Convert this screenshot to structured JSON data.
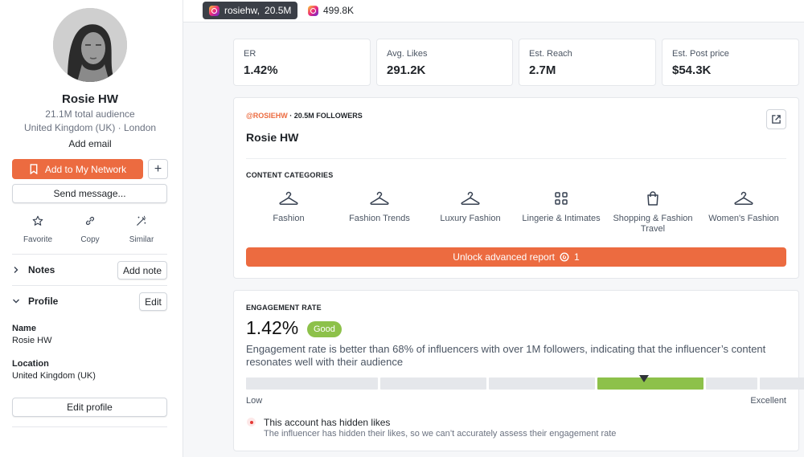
{
  "profile": {
    "name": "Rosie HW",
    "audience": "21.1M total audience",
    "location": "United Kingdom (UK) · London",
    "add_email": "Add email",
    "add_network_label": "Add to My Network",
    "plus_label": "+",
    "send_message_label": "Send message...",
    "actions": [
      {
        "label": "Favorite",
        "icon": "star-icon"
      },
      {
        "label": "Copy",
        "icon": "link-icon"
      },
      {
        "label": "Similar",
        "icon": "magic-wand-icon"
      }
    ],
    "notes_label": "Notes",
    "add_note_label": "Add note",
    "profile_label": "Profile",
    "edit_label": "Edit",
    "name_label": "Name",
    "name_value": "Rosie HW",
    "location_label": "Location",
    "location_value": "United Kingdom (UK)",
    "edit_profile_label": "Edit profile"
  },
  "tabs": [
    {
      "label": "rosiehw,",
      "count": "20.5M",
      "icon": "instagram-icon",
      "active": true
    },
    {
      "label": "499.8K",
      "icon": "instagram-icon",
      "active": false
    }
  ],
  "kpis": [
    {
      "label": "ER",
      "value": "1.42%"
    },
    {
      "label": "Avg. Likes",
      "value": "291.2K"
    },
    {
      "label": "Est. Reach",
      "value": "2.7M"
    },
    {
      "label": "Est. Post price",
      "value": "$54.3K"
    }
  ],
  "overview": {
    "handle": "@ROSIEHW",
    "followers": "· 20.5M FOLLOWERS",
    "name": "Rosie HW",
    "categories_title": "CONTENT CATEGORIES",
    "categories": [
      {
        "label": "Fashion",
        "icon": "hanger-icon"
      },
      {
        "label": "Fashion Trends",
        "icon": "hanger-icon"
      },
      {
        "label": "Luxury Fashion",
        "icon": "hanger-icon"
      },
      {
        "label": "Lingerie & Intimates",
        "icon": "grid-icon"
      },
      {
        "label": "Shopping & Fashion Travel",
        "icon": "shopping-bag-icon"
      },
      {
        "label": "Women's Fashion",
        "icon": "hanger-icon"
      }
    ],
    "unlock_label": "Unlock advanced report",
    "unlock_cost": "1"
  },
  "engagement": {
    "title": "ENGAGEMENT RATE",
    "value": "1.42%",
    "badge": "Good",
    "description": "Engagement rate is better than 68% of influencers with over 1M followers, indicating that the influencer’s content resonates well with their audience",
    "scale_low": "Low",
    "scale_high": "Excellent",
    "active_segment": 4,
    "segment_count": 6,
    "hidden_title": "This account has hidden likes",
    "hidden_desc": "The influencer has hidden their likes, so we can’t accurately assess their engagement rate"
  },
  "colors": {
    "accent": "#ec6b40",
    "good": "#8dc14a",
    "tab_dark": "#3b3f47"
  }
}
